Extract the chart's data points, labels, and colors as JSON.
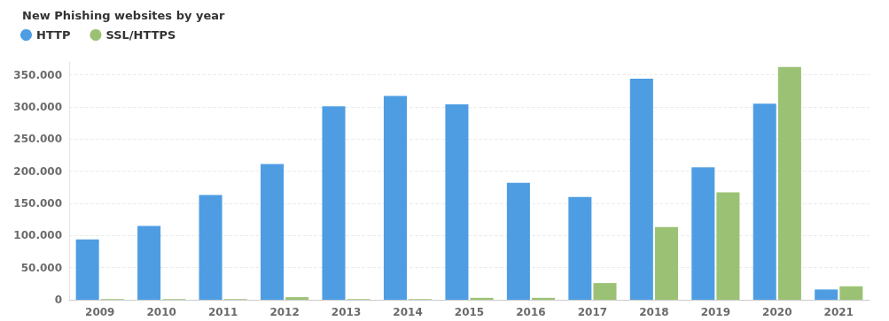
{
  "chart_data": {
    "type": "bar",
    "title": "New Phishing websites by year",
    "categories": [
      "2009",
      "2010",
      "2011",
      "2012",
      "2013",
      "2014",
      "2015",
      "2016",
      "2017",
      "2018",
      "2019",
      "2020",
      "2021"
    ],
    "series": [
      {
        "name": "HTTP",
        "color": "#4e9de3",
        "values": [
          94000,
          115000,
          163000,
          211000,
          301000,
          317000,
          304000,
          182000,
          160000,
          344000,
          206000,
          305000,
          16000
        ]
      },
      {
        "name": "SSL/HTTPS",
        "color": "#9bc274",
        "values": [
          1000,
          1000,
          1000,
          4000,
          1000,
          1000,
          3000,
          3000,
          26000,
          113000,
          167000,
          362000,
          21000
        ]
      }
    ],
    "ylim": [
      0,
      370000
    ],
    "yticks": [
      {
        "value": 0,
        "label": "0"
      },
      {
        "value": 50000,
        "label": "50.000"
      },
      {
        "value": 100000,
        "label": "100.000"
      },
      {
        "value": 150000,
        "label": "150.000"
      },
      {
        "value": 200000,
        "label": "200.000"
      },
      {
        "value": 250000,
        "label": "250.000"
      },
      {
        "value": 300000,
        "label": "300.000"
      },
      {
        "value": 350000,
        "label": "350.000"
      }
    ],
    "grid": "y",
    "legend": "top left"
  }
}
